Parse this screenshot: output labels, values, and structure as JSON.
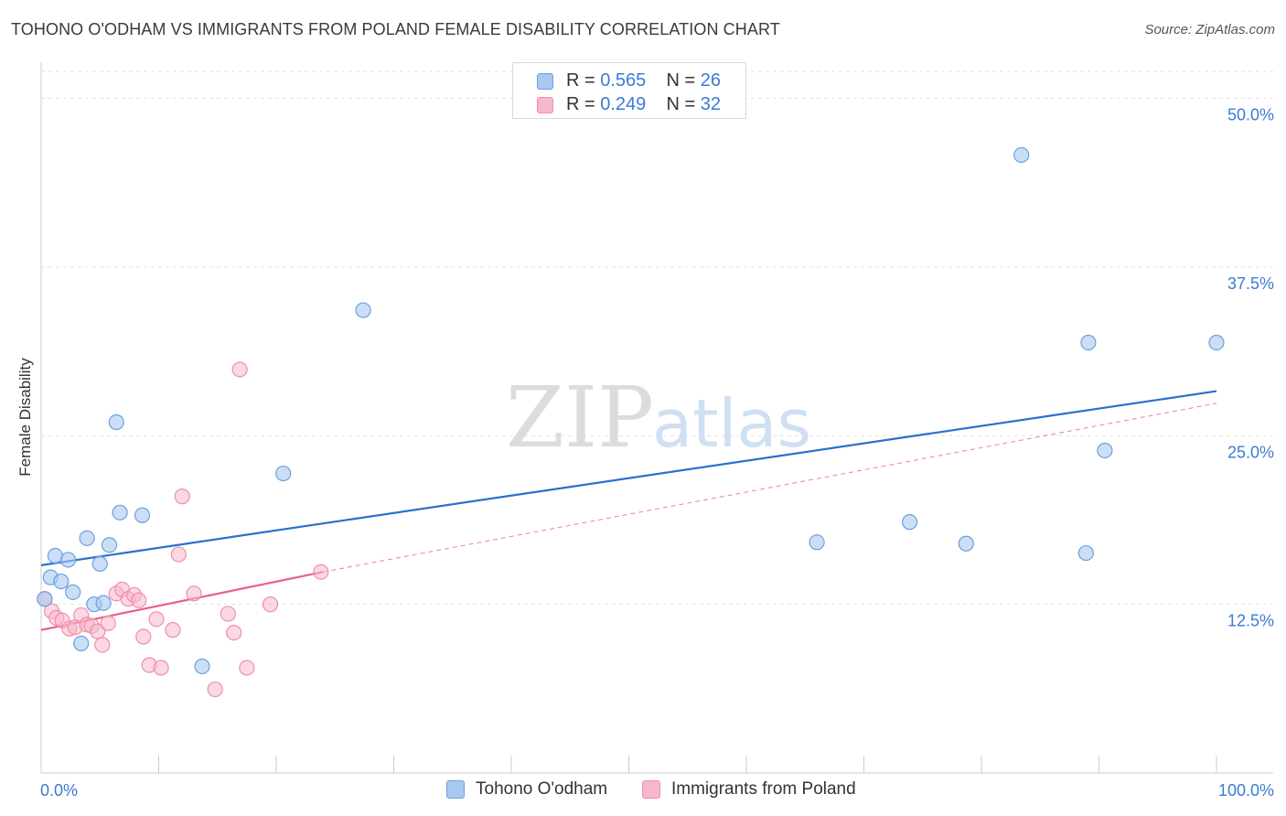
{
  "header": {
    "title": "TOHONO O'ODHAM VS IMMIGRANTS FROM POLAND FEMALE DISABILITY CORRELATION CHART",
    "source": "Source: ZipAtlas.com"
  },
  "legend_top": {
    "series1": {
      "r_label": "R =",
      "r_value": "0.565",
      "n_label": "N =",
      "n_value": "26"
    },
    "series2": {
      "r_label": "R =",
      "r_value": "0.249",
      "n_label": "N =",
      "n_value": "32"
    }
  },
  "legend_bottom": {
    "series1": "Tohono O'odham",
    "series2": "Immigrants from Poland"
  },
  "watermark": {
    "zip": "ZIP",
    "atlas": "atlas"
  },
  "colors": {
    "series1_fill": "#a8c8f0",
    "series1_stroke": "#6aa0e0",
    "series1_line": "#2a6fcf",
    "series2_fill": "#f7b8cb",
    "series2_stroke": "#ee8fab",
    "series2_line": "#e8608a",
    "axis_text": "#3a7bd5",
    "grid": "#e2e2e2"
  },
  "chart_data": {
    "type": "scatter",
    "ylabel": "Female Disability",
    "xlim": [
      0,
      100
    ],
    "ylim": [
      0,
      52
    ],
    "x_tick_labels": [
      "0.0%",
      "100.0%"
    ],
    "y_ticks": [
      12.5,
      25.0,
      37.5,
      50.0
    ],
    "y_tick_labels": [
      "12.5%",
      "25.0%",
      "37.5%",
      "50.0%"
    ],
    "grid": true,
    "legend_position": "top-center",
    "series": [
      {
        "name": "Tohono O'odham",
        "points": [
          [
            0.3,
            12.9
          ],
          [
            0.8,
            14.5
          ],
          [
            1.2,
            16.1
          ],
          [
            1.7,
            14.2
          ],
          [
            2.3,
            15.8
          ],
          [
            2.7,
            13.4
          ],
          [
            3.4,
            9.6
          ],
          [
            3.9,
            17.4
          ],
          [
            4.5,
            12.5
          ],
          [
            5.0,
            15.5
          ],
          [
            5.3,
            12.6
          ],
          [
            5.8,
            16.9
          ],
          [
            6.4,
            26.0
          ],
          [
            6.7,
            19.3
          ],
          [
            8.6,
            19.1
          ],
          [
            20.6,
            22.2
          ],
          [
            27.4,
            34.3
          ],
          [
            13.7,
            7.9
          ],
          [
            66.0,
            17.1
          ],
          [
            73.9,
            18.6
          ],
          [
            78.7,
            17.0
          ],
          [
            83.4,
            45.8
          ],
          [
            88.9,
            16.3
          ],
          [
            89.1,
            31.9
          ],
          [
            90.5,
            23.9
          ],
          [
            100.0,
            31.9
          ]
        ],
        "trend": {
          "x": [
            0,
            100
          ],
          "y": [
            15.4,
            28.3
          ]
        }
      },
      {
        "name": "Immigrants from Poland",
        "points": [
          [
            0.3,
            12.9
          ],
          [
            0.9,
            12.0
          ],
          [
            1.3,
            11.5
          ],
          [
            1.8,
            11.3
          ],
          [
            2.4,
            10.7
          ],
          [
            2.9,
            10.8
          ],
          [
            3.4,
            11.7
          ],
          [
            3.9,
            11.0
          ],
          [
            4.3,
            10.9
          ],
          [
            4.8,
            10.5
          ],
          [
            5.2,
            9.5
          ],
          [
            5.7,
            11.1
          ],
          [
            6.4,
            13.3
          ],
          [
            6.9,
            13.6
          ],
          [
            7.4,
            12.9
          ],
          [
            7.9,
            13.2
          ],
          [
            8.3,
            12.8
          ],
          [
            8.7,
            10.1
          ],
          [
            9.2,
            8.0
          ],
          [
            9.8,
            11.4
          ],
          [
            10.2,
            7.8
          ],
          [
            11.2,
            10.6
          ],
          [
            11.7,
            16.2
          ],
          [
            12.0,
            20.5
          ],
          [
            13.0,
            13.3
          ],
          [
            14.8,
            6.2
          ],
          [
            15.9,
            11.8
          ],
          [
            16.4,
            10.4
          ],
          [
            16.9,
            29.9
          ],
          [
            17.5,
            7.8
          ],
          [
            19.5,
            12.5
          ],
          [
            23.8,
            14.9
          ]
        ],
        "trend_solid": {
          "x": [
            0,
            24
          ],
          "y": [
            10.6,
            14.9
          ]
        },
        "trend_dashed": {
          "x": [
            24,
            100
          ],
          "y": [
            14.9,
            27.4
          ]
        }
      }
    ]
  }
}
